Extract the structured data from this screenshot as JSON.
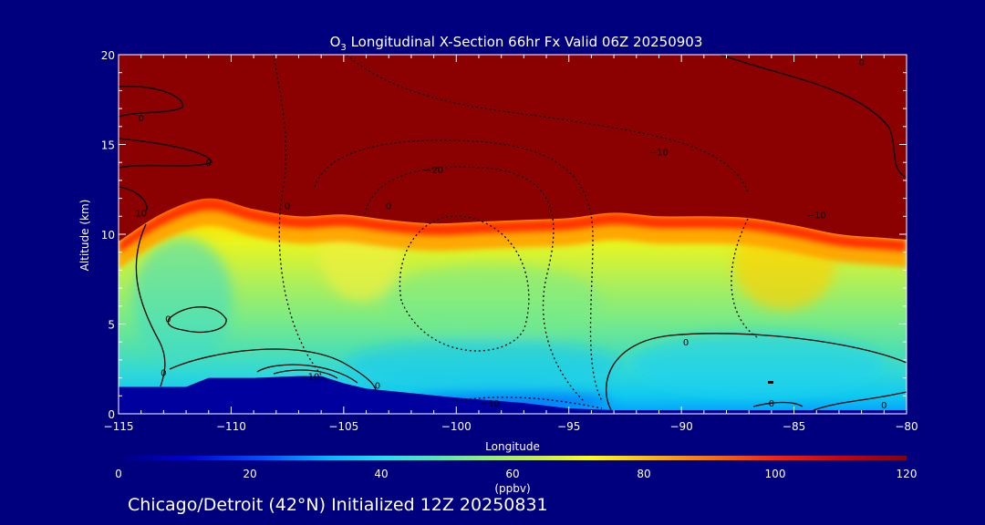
{
  "colors": {
    "background": "#00007f",
    "terrain": "#00009e",
    "axis": "#ffffff",
    "text": "#ffffff",
    "contour": "#000000",
    "high_ozone": "#8b0000"
  },
  "chart_data": {
    "type": "heatmap",
    "title": {
      "species_main": "O",
      "species_sub": "3",
      "rest": " Longitudinal X-Section 66hr  Fx Valid 06Z 20250903"
    },
    "xlabel": "Longitude",
    "ylabel": "Altitude (km)",
    "xlim": [
      -115,
      -80
    ],
    "ylim": [
      0,
      20
    ],
    "x_ticks": [
      -115,
      -110,
      -105,
      -100,
      -95,
      -90,
      -85,
      -80
    ],
    "x_tick_labels": [
      "−115",
      "−110",
      "−105",
      "−100",
      "−95",
      "−90",
      "−85",
      "−80"
    ],
    "y_ticks": [
      0,
      5,
      10,
      15,
      20
    ],
    "y_tick_labels": [
      "0",
      "5",
      "10",
      "15",
      "20"
    ],
    "tropopause": {
      "lon": [
        -115,
        -113,
        -111,
        -109,
        -107,
        -105,
        -103,
        -101,
        -99,
        -97,
        -95,
        -93,
        -91,
        -89,
        -87,
        -85,
        -83,
        -81,
        -80
      ],
      "alt": [
        9.6,
        11.2,
        12.0,
        11.4,
        11.0,
        11.1,
        10.8,
        10.6,
        10.7,
        10.8,
        10.9,
        11.2,
        11.0,
        11.0,
        10.9,
        10.5,
        10.0,
        9.8,
        9.7
      ]
    },
    "terrain": {
      "lon": [
        -115,
        -112,
        -111,
        -109,
        -107,
        -106,
        -105,
        -104,
        -100,
        -97,
        -95,
        -93,
        -92,
        -88,
        -85,
        -80
      ],
      "alt": [
        1.5,
        1.5,
        2.0,
        2.0,
        2.1,
        2.1,
        1.7,
        1.4,
        0.9,
        0.6,
        0.3,
        0.2,
        0.2,
        0.2,
        0.2,
        0.2
      ]
    },
    "contour_labels": [
      {
        "lon": -114.0,
        "alt": 16.5,
        "text": "0"
      },
      {
        "lon": -111.0,
        "alt": 14.0,
        "text": "0"
      },
      {
        "lon": -114.0,
        "alt": 11.2,
        "text": "10"
      },
      {
        "lon": -103.0,
        "alt": 11.6,
        "text": "0"
      },
      {
        "lon": -107.5,
        "alt": 11.6,
        "text": "0"
      },
      {
        "lon": -101.0,
        "alt": 13.6,
        "text": "−20"
      },
      {
        "lon": -91.0,
        "alt": 14.6,
        "text": "−10"
      },
      {
        "lon": -84.0,
        "alt": 11.1,
        "text": "−10"
      },
      {
        "lon": -82.0,
        "alt": 19.6,
        "text": "0"
      },
      {
        "lon": -112.8,
        "alt": 5.3,
        "text": "0"
      },
      {
        "lon": -113.0,
        "alt": 2.3,
        "text": "0"
      },
      {
        "lon": -106.5,
        "alt": 2.1,
        "text": "−10"
      },
      {
        "lon": -103.5,
        "alt": 1.6,
        "text": "0"
      },
      {
        "lon": -98.5,
        "alt": 0.6,
        "text": "−10"
      },
      {
        "lon": -89.8,
        "alt": 4.0,
        "text": "0"
      },
      {
        "lon": -86.0,
        "alt": 0.6,
        "text": "0"
      },
      {
        "lon": -81.0,
        "alt": 0.5,
        "text": "0"
      }
    ],
    "colorbar": {
      "min": 0,
      "max": 120,
      "ticks": [
        0,
        20,
        40,
        60,
        80,
        100,
        120
      ],
      "tick_labels": [
        "0",
        "20",
        "40",
        "60",
        "80",
        "100",
        "120"
      ],
      "unit": "(ppbv)",
      "stops": [
        {
          "value": 0,
          "color": "#00007f"
        },
        {
          "value": 10,
          "color": "#0000d0"
        },
        {
          "value": 22,
          "color": "#0050ff"
        },
        {
          "value": 32,
          "color": "#00b8ff"
        },
        {
          "value": 40,
          "color": "#20e0f0"
        },
        {
          "value": 48,
          "color": "#50e8b0"
        },
        {
          "value": 56,
          "color": "#90f070"
        },
        {
          "value": 64,
          "color": "#c8f040"
        },
        {
          "value": 72,
          "color": "#ffff00"
        },
        {
          "value": 80,
          "color": "#ffc000"
        },
        {
          "value": 90,
          "color": "#ff7000"
        },
        {
          "value": 100,
          "color": "#ff2000"
        },
        {
          "value": 110,
          "color": "#d00000"
        },
        {
          "value": 120,
          "color": "#8b0000"
        }
      ]
    }
  },
  "footer": "Chicago/Detroit (42°N) Initialized 12Z 20250831"
}
